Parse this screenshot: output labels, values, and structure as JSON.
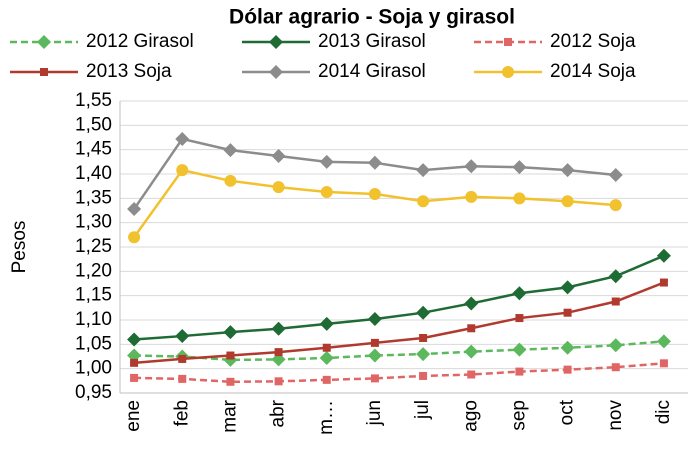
{
  "chart_data": {
    "type": "line",
    "title": "Dólar agrario - Soja y girasol",
    "y_label": "Pesos",
    "categories": [
      "ene",
      "feb",
      "mar",
      "abr",
      "m…",
      "jun",
      "jul",
      "ago",
      "sep",
      "oct",
      "nov",
      "dic"
    ],
    "ylim": [
      0.95,
      1.55
    ],
    "yticks": [
      {
        "value": 0.95,
        "label": "0,95"
      },
      {
        "value": 1.0,
        "label": "1,00"
      },
      {
        "value": 1.05,
        "label": "1,05"
      },
      {
        "value": 1.1,
        "label": "1,10"
      },
      {
        "value": 1.15,
        "label": "1,15"
      },
      {
        "value": 1.2,
        "label": "1,20"
      },
      {
        "value": 1.25,
        "label": "1,25"
      },
      {
        "value": 1.3,
        "label": "1,30"
      },
      {
        "value": 1.35,
        "label": "1,35"
      },
      {
        "value": 1.4,
        "label": "1,40"
      },
      {
        "value": 1.45,
        "label": "1,45"
      },
      {
        "value": 1.5,
        "label": "1,50"
      },
      {
        "value": 1.55,
        "label": "1,55"
      }
    ],
    "grid": true,
    "series": [
      {
        "name": "2012 Girasol",
        "color": "#5cb85c",
        "dashed": true,
        "marker": "diamond",
        "values": [
          1.027,
          1.025,
          1.018,
          1.019,
          1.022,
          1.027,
          1.03,
          1.035,
          1.039,
          1.043,
          1.048,
          1.056
        ]
      },
      {
        "name": "2013 Girasol",
        "color": "#1e6b34",
        "dashed": false,
        "marker": "diamond",
        "values": [
          1.06,
          1.067,
          1.075,
          1.082,
          1.092,
          1.102,
          1.115,
          1.134,
          1.155,
          1.167,
          1.19,
          1.232
        ]
      },
      {
        "name": "2012 Soja",
        "color": "#e06666",
        "dashed": true,
        "marker": "square",
        "values": [
          0.981,
          0.979,
          0.973,
          0.974,
          0.977,
          0.98,
          0.985,
          0.988,
          0.994,
          0.998,
          1.003,
          1.011
        ]
      },
      {
        "name": "2013 Soja",
        "color": "#b03a2e",
        "dashed": false,
        "marker": "square",
        "values": [
          1.012,
          1.02,
          1.027,
          1.034,
          1.043,
          1.053,
          1.063,
          1.083,
          1.104,
          1.115,
          1.138,
          1.177
        ]
      },
      {
        "name": "2014 Girasol",
        "color": "#8c8c8c",
        "dashed": false,
        "marker": "diamond",
        "values": [
          1.328,
          1.472,
          1.449,
          1.437,
          1.425,
          1.423,
          1.408,
          1.416,
          1.414,
          1.408,
          1.398,
          null
        ]
      },
      {
        "name": "2014 Soja",
        "color": "#f2c12e",
        "dashed": false,
        "marker": "circle",
        "values": [
          1.27,
          1.408,
          1.386,
          1.373,
          1.363,
          1.359,
          1.344,
          1.353,
          1.35,
          1.344,
          1.336,
          null
        ]
      }
    ]
  }
}
